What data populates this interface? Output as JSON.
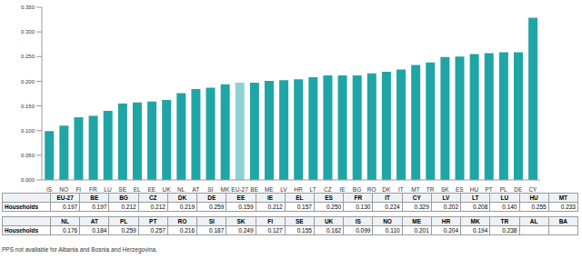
{
  "chart_data": {
    "type": "bar",
    "categories": [
      "IS",
      "NO",
      "FI",
      "FR",
      "LU",
      "SE",
      "EL",
      "EE",
      "UK",
      "NL",
      "AT",
      "SI",
      "MK",
      "EU-27",
      "BE",
      "ME",
      "LV",
      "HR",
      "LT",
      "CZ",
      "IE",
      "BG",
      "RO",
      "DK",
      "IT",
      "MT",
      "TR",
      "SK",
      "ES",
      "HU",
      "PT",
      "PL",
      "DE",
      "CY"
    ],
    "values": [
      0.099,
      0.11,
      0.127,
      0.13,
      0.14,
      0.155,
      0.157,
      0.159,
      0.162,
      0.176,
      0.184,
      0.187,
      0.194,
      0.197,
      0.197,
      0.201,
      0.202,
      0.204,
      0.208,
      0.212,
      0.212,
      0.212,
      0.216,
      0.219,
      0.224,
      0.233,
      0.238,
      0.249,
      0.25,
      0.255,
      0.257,
      0.259,
      0.259,
      0.329
    ],
    "colors": [
      "#1fa5a5",
      "#1fa5a5",
      "#1fa5a5",
      "#1fa5a5",
      "#1fa5a5",
      "#1fa5a5",
      "#1fa5a5",
      "#1fa5a5",
      "#1fa5a5",
      "#1fa5a5",
      "#1fa5a5",
      "#1fa5a5",
      "#1fa5a5",
      "#8fd2d2",
      "#1fa5a5",
      "#1fa5a5",
      "#1fa5a5",
      "#1fa5a5",
      "#1fa5a5",
      "#1fa5a5",
      "#1fa5a5",
      "#1fa5a5",
      "#1fa5a5",
      "#1fa5a5",
      "#1fa5a5",
      "#1fa5a5",
      "#1fa5a5",
      "#1fa5a5",
      "#1fa5a5",
      "#1fa5a5",
      "#1fa5a5",
      "#1fa5a5",
      "#1fa5a5",
      "#1fa5a5"
    ],
    "ylim": [
      0,
      0.35
    ],
    "yticks": [
      {
        "value": 0,
        "label": "0.000"
      },
      {
        "value": 0.05,
        "label": "0.050"
      },
      {
        "value": 0.1,
        "label": "0.100"
      },
      {
        "value": 0.15,
        "label": "0.150"
      },
      {
        "value": 0.2,
        "label": "0.200"
      },
      {
        "value": 0.25,
        "label": "0.250"
      },
      {
        "value": 0.3,
        "label": "0.300"
      },
      {
        "value": 0.35,
        "label": "0.350"
      }
    ],
    "grid": false
  },
  "table": {
    "row_label": "Households",
    "blocks": [
      {
        "columns": [
          "EU-27",
          "BE",
          "BG",
          "CZ",
          "DK",
          "DE",
          "EE",
          "IE",
          "EL",
          "ES",
          "FR",
          "IT",
          "CY",
          "LV",
          "LT",
          "LU",
          "HU",
          "MT"
        ],
        "values": [
          "0.197",
          "0.197",
          "0.212",
          "0.212",
          "0.219",
          "0.259",
          "0.159",
          "0.212",
          "0.157",
          "0.250",
          "0.130",
          "0.224",
          "0.329",
          "0.202",
          "0.208",
          "0.140",
          "0.255",
          "0.233"
        ]
      },
      {
        "columns": [
          "NL",
          "AT",
          "PL",
          "PT",
          "RO",
          "SI",
          "SK",
          "FI",
          "SE",
          "UK",
          "IS",
          "NO",
          "ME",
          "HR",
          "MK",
          "TR",
          "AL",
          "BA"
        ],
        "values": [
          "0.176",
          "0.184",
          "0.259",
          "0.257",
          "0.216",
          "0.187",
          "0.249",
          "0.127",
          "0.155",
          "0.162",
          "0.099",
          "0.110",
          "0.201",
          "0.204",
          "0.194",
          "0.238",
          null,
          null
        ]
      }
    ]
  },
  "note": "PPS not available for Albania and Bosnia and Herzegovina."
}
